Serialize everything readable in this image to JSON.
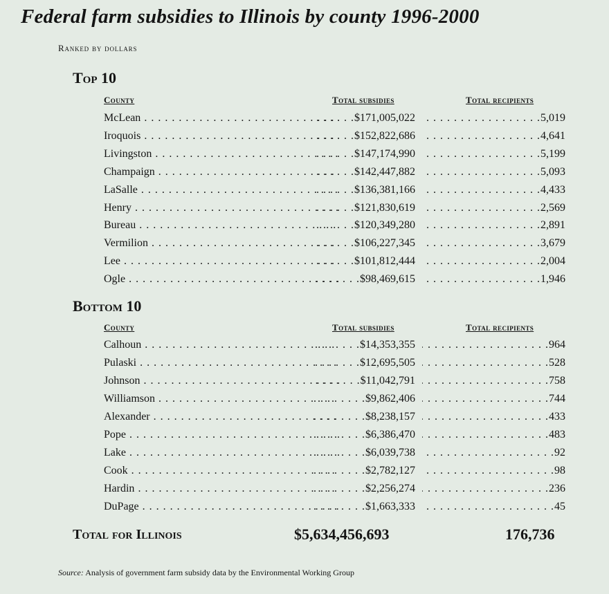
{
  "title": "Federal farm subsidies to Illinois by county 1996-2000",
  "subtitle": "Ranked by dollars",
  "top": {
    "heading": "Top 10",
    "col_county": "County",
    "col_subsidies": "Total subsidies",
    "col_recipients": "Total recipients",
    "rows": [
      {
        "county": "McLean",
        "subsidies": "$171,005,022",
        "recipients": "5,019"
      },
      {
        "county": "Iroquois",
        "subsidies": "$152,822,686",
        "recipients": "4,641"
      },
      {
        "county": "Livingston",
        "subsidies": "$147,174,990",
        "recipients": "5,199"
      },
      {
        "county": "Champaign",
        "subsidies": "$142,447,882",
        "recipients": "5,093"
      },
      {
        "county": "LaSalle",
        "subsidies": "$136,381,166",
        "recipients": "4,433"
      },
      {
        "county": "Henry",
        "subsidies": "$121,830,619",
        "recipients": "2,569"
      },
      {
        "county": "Bureau",
        "subsidies": "$120,349,280",
        "recipients": "2,891"
      },
      {
        "county": "Vermilion",
        "subsidies": "$106,227,345",
        "recipients": "3,679"
      },
      {
        "county": "Lee",
        "subsidies": "$101,812,444",
        "recipients": "2,004"
      },
      {
        "county": "Ogle",
        "subsidies": "$98,469,615",
        "recipients": "1,946"
      }
    ]
  },
  "bottom": {
    "heading": "Bottom 10",
    "col_county": "County",
    "col_subsidies": "Total subsidies",
    "col_recipients": "Total recipients",
    "rows": [
      {
        "county": "Calhoun",
        "subsidies": "$14,353,355",
        "recipients": "964"
      },
      {
        "county": "Pulaski",
        "subsidies": "$12,695,505",
        "recipients": "528"
      },
      {
        "county": "Johnson",
        "subsidies": "$11,042,791",
        "recipients": "758"
      },
      {
        "county": "Williamson",
        "subsidies": "$9,862,406",
        "recipients": "744"
      },
      {
        "county": "Alexander",
        "subsidies": "$8,238,157",
        "recipients": "433"
      },
      {
        "county": "Pope",
        "subsidies": "$6,386,470",
        "recipients": "483"
      },
      {
        "county": "Lake",
        "subsidies": "$6,039,738",
        "recipients": "92"
      },
      {
        "county": "Cook",
        "subsidies": "$2,782,127",
        "recipients": "98"
      },
      {
        "county": "Hardin",
        "subsidies": "$2,256,274",
        "recipients": "236"
      },
      {
        "county": "DuPage",
        "subsidies": "$1,663,333",
        "recipients": "45"
      }
    ]
  },
  "total": {
    "label": "Total for Illinois",
    "subsidies": "$5,634,456,693",
    "recipients": "176,736"
  },
  "source": {
    "label": "Source:",
    "text": "Analysis of government farm subsidy data by the Environmental Working Group"
  }
}
